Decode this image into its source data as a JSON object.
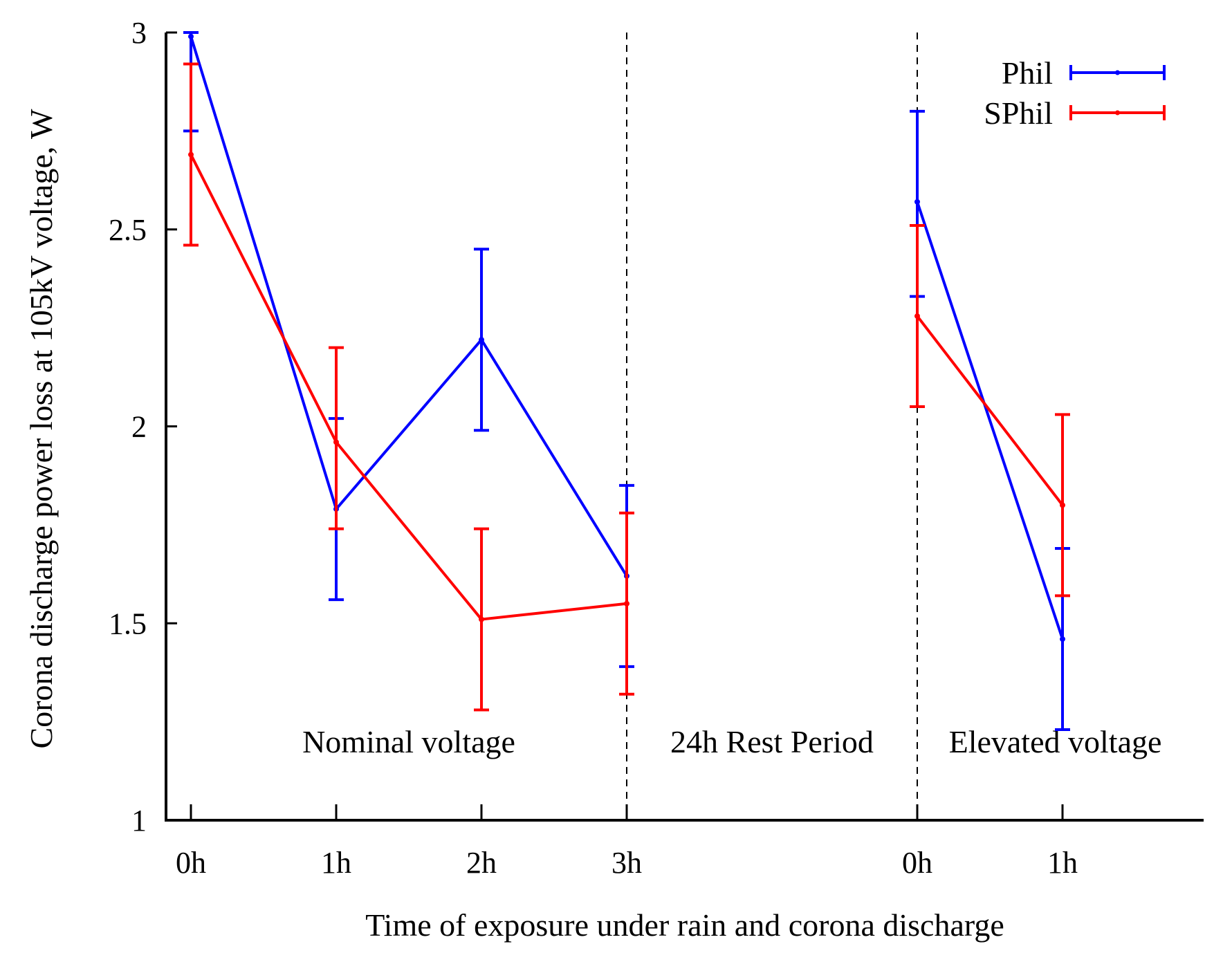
{
  "chart_data": {
    "type": "line",
    "title": "",
    "xlabel": "Time of exposure under rain and corona discharge",
    "ylabel": "Corona discharge power loss at 105kV voltage, W",
    "ylim": [
      1,
      3
    ],
    "y_ticks": [
      "1",
      "1.5",
      "2",
      "2.5",
      "3"
    ],
    "categories": [
      "0h",
      "1h",
      "2h",
      "3h",
      "0h",
      "1h"
    ],
    "x_positions": [
      0,
      1,
      2,
      3,
      5,
      6
    ],
    "separators": [
      3,
      5
    ],
    "regions": [
      {
        "label": "Nominal voltage",
        "center": 1.5
      },
      {
        "label": "24h Rest Period",
        "center": 4.0
      },
      {
        "label": "Elevated voltage",
        "center": 5.95
      }
    ],
    "region_label_y": 1.2,
    "legend_position": "top-right",
    "series": [
      {
        "name": "Phil",
        "color": "#0000ff",
        "segments": [
          [
            0,
            1,
            2,
            3
          ],
          [
            4,
            5
          ]
        ],
        "values": [
          2.99,
          1.79,
          2.22,
          1.62,
          2.57,
          1.46
        ],
        "err_low": [
          2.75,
          1.56,
          1.99,
          1.39,
          2.33,
          1.23
        ],
        "err_high": [
          3.0,
          2.02,
          2.45,
          1.85,
          2.8,
          1.69
        ]
      },
      {
        "name": "SPhil",
        "color": "#ff0000",
        "segments": [
          [
            0,
            1,
            2,
            3
          ],
          [
            4,
            5
          ]
        ],
        "values": [
          2.69,
          1.96,
          1.51,
          1.55,
          2.28,
          1.8
        ],
        "err_low": [
          2.46,
          1.74,
          1.28,
          1.32,
          2.05,
          1.57
        ],
        "err_high": [
          2.92,
          2.2,
          1.74,
          1.78,
          2.51,
          2.03
        ]
      }
    ]
  }
}
